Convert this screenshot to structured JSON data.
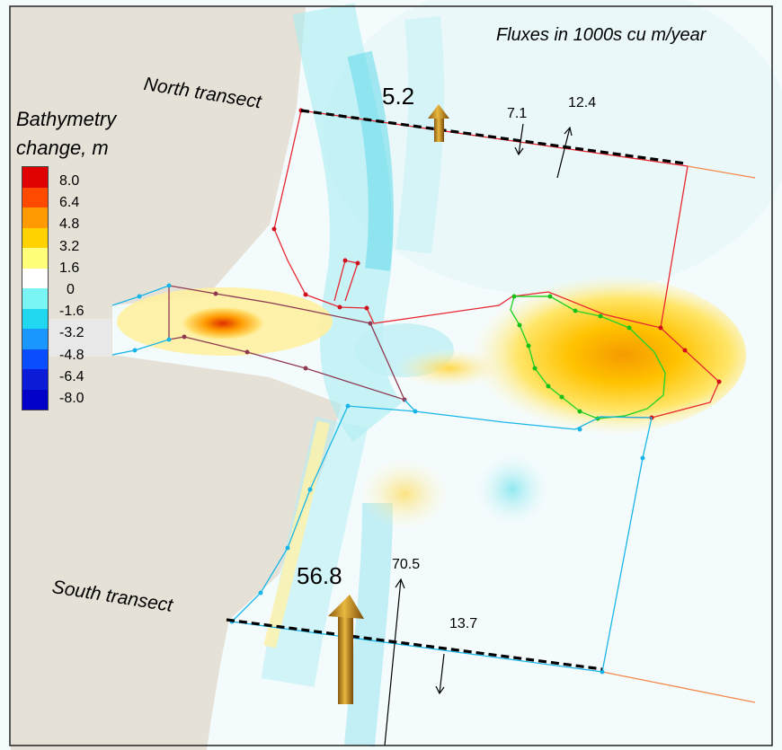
{
  "map": {
    "flux_units_note": "Fluxes in 1000s cu m/year",
    "north_transect_label": "North transect",
    "south_transect_label": "South transect"
  },
  "legend": {
    "title": "Bathymetry change, m",
    "ticks": [
      "8.0",
      "6.4",
      "4.8",
      "3.2",
      "1.6",
      "0",
      "-1.6",
      "-3.2",
      "-4.8",
      "-6.4",
      "-8.0"
    ],
    "colors": [
      "#e00000",
      "#ff4a00",
      "#ff9a00",
      "#ffd200",
      "#ffff7a",
      "#ffffff",
      "#7af5f5",
      "#22d8f0",
      "#1a96ff",
      "#0a4cff",
      "#0a1cd8",
      "#0000c8"
    ]
  },
  "fluxes": {
    "north_net": "5.2",
    "north_down": "7.1",
    "north_up": "12.4",
    "south_net": "56.8",
    "south_up": "70.5",
    "south_down": "13.7"
  },
  "colors": {
    "land": "#e6e1d7",
    "north_cell": "#e8262f",
    "south_cell": "#18b6e8",
    "channel_cell": "#8f3a52",
    "shoal_cell": "#28d228",
    "arrow_gold": "#c89020"
  }
}
